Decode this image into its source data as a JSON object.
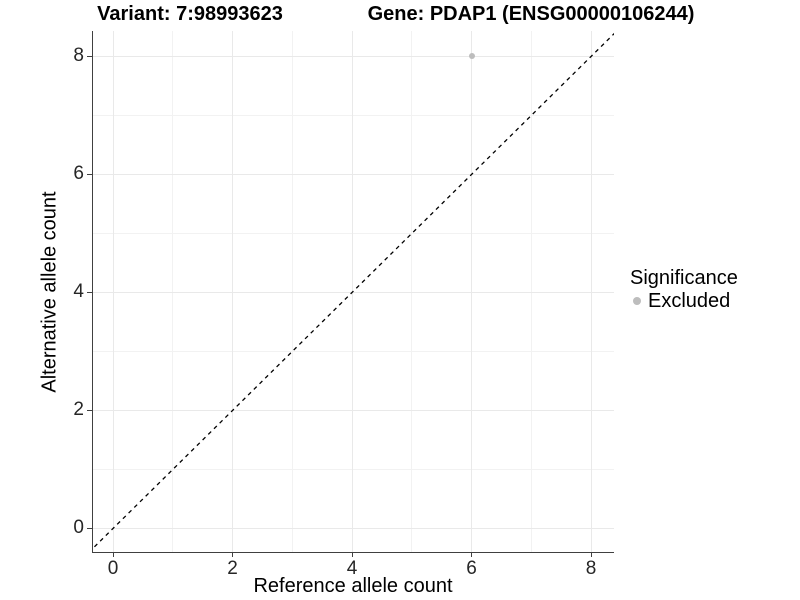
{
  "titles": {
    "variant": "Variant: 7:98993623",
    "gene": "Gene: PDAP1 (ENSG00000106244)"
  },
  "chart_data": {
    "type": "scatter",
    "title_left": "Variant: 7:98993623",
    "title_right": "Gene: PDAP1 (ENSG00000106244)",
    "xlabel": "Reference allele count",
    "ylabel": "Alternative allele count",
    "xlim": [
      -0.35,
      8.4
    ],
    "ylim": [
      -0.4,
      8.4
    ],
    "x_ticks": [
      0,
      2,
      4,
      6,
      8
    ],
    "y_ticks": [
      0,
      2,
      4,
      6,
      8
    ],
    "x_minor_ticks": [
      1,
      3,
      5,
      7
    ],
    "y_minor_ticks": [
      1,
      3,
      5,
      7
    ],
    "grid": "major+minor",
    "points": [
      {
        "x": 6,
        "y": 8,
        "significance": "Excluded"
      }
    ],
    "reference_line": {
      "style": "dashed",
      "slope": 1,
      "intercept": 0,
      "color": "#000000"
    },
    "legend": {
      "title": "Significance",
      "position": "right",
      "items": [
        {
          "label": "Excluded",
          "color": "#bdbdbd"
        }
      ]
    },
    "colors": {
      "point_excluded": "#bdbdbd",
      "grid_major": "#e9e9e9",
      "grid_minor": "#f2f2f2",
      "axis": "#404040",
      "background": "#ffffff"
    }
  }
}
